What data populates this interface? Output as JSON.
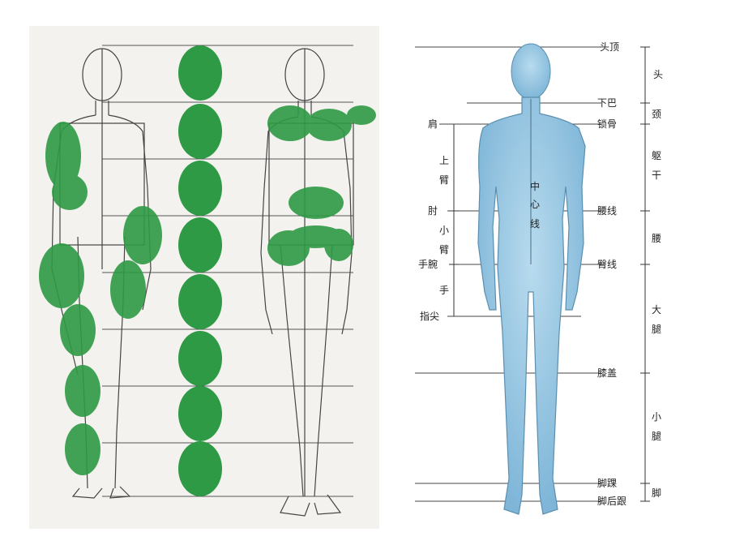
{
  "right_labels": {
    "top": "头顶",
    "chin": "下巴",
    "clavicle": "锁骨",
    "waist": "腰线",
    "hip": "臀线",
    "knee": "膝盖",
    "ankle": "脚踝",
    "heel": "脚后跟"
  },
  "left_labels": {
    "shoulder": "肩",
    "upper_arm_1": "上",
    "upper_arm_2": "臂",
    "elbow": "肘",
    "forearm_1": "小",
    "forearm_2": "臂",
    "wrist": "手腕",
    "hand": "手",
    "fingertip": "指尖"
  },
  "center_labels": {
    "c1": "中",
    "c2": "心",
    "c3": "线"
  },
  "section_labels": {
    "head": "头",
    "neck": "颈",
    "torso_1": "躯",
    "torso_2": "干",
    "waist": "腰",
    "thigh_1": "大",
    "thigh_2": "腿",
    "calf_1": "小",
    "calf_2": "腿",
    "foot": "脚"
  },
  "colors": {
    "green": "#2e9a45",
    "body_blue": "#8ec3e0",
    "body_stroke": "#5a8fb0",
    "line": "#333333"
  }
}
